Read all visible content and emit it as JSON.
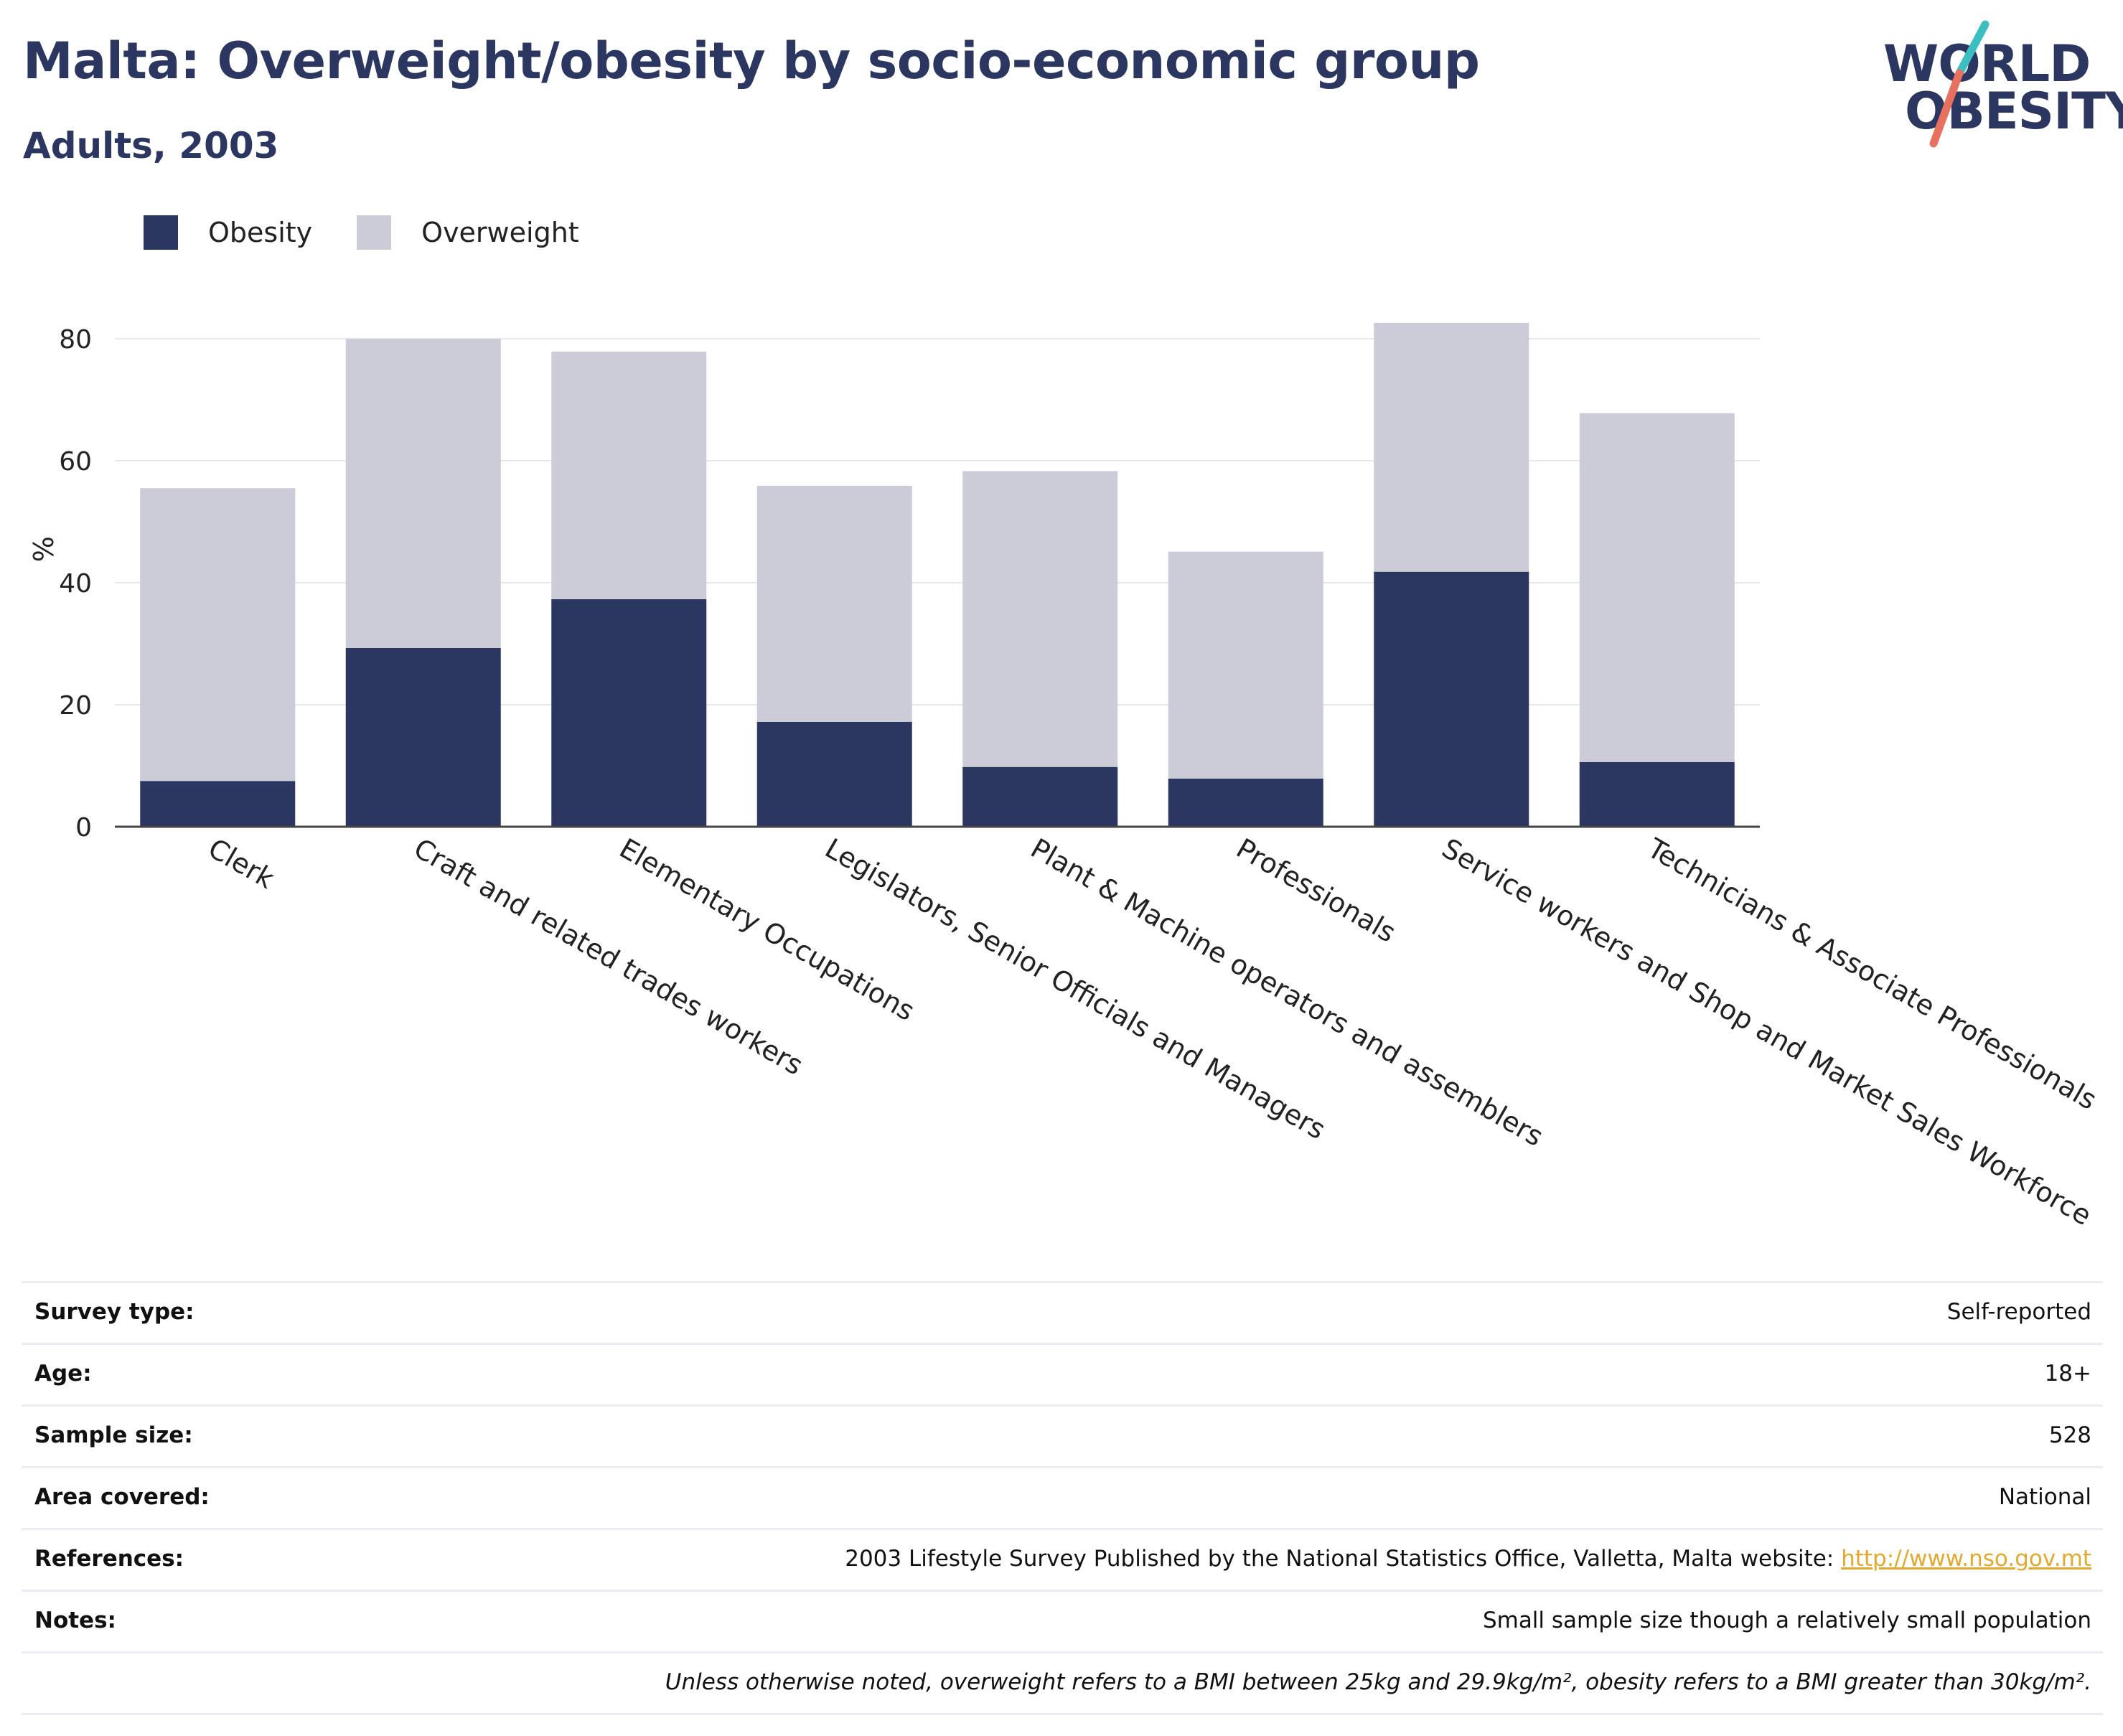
{
  "header": {
    "title": "Malta: Overweight/obesity by socio-economic group",
    "subtitle": "Adults, 2003"
  },
  "logo": {
    "line1": "WORLD",
    "line2": "OBESITY",
    "colors": {
      "teal": "#3bbfc1",
      "coral": "#e8705e"
    }
  },
  "legend": [
    {
      "label": "Obesity",
      "color": "#2b3661"
    },
    {
      "label": "Overweight",
      "color": "#cbccd8"
    }
  ],
  "chart_data": {
    "type": "bar",
    "stacked": true,
    "categories": [
      "Clerk",
      "Craft and related trades workers",
      "Elementary Occupations",
      "Legislators, Senior Officials and Managers",
      "Plant & Machine operators and assemblers",
      "Professionals",
      "Service workers and Shop and Market Sales Workforce",
      "Technicians & Associate Professionals"
    ],
    "series": [
      {
        "name": "Obesity",
        "color": "#2b3661",
        "values": [
          7.5,
          29.3,
          37.3,
          17.2,
          9.8,
          7.9,
          41.8,
          10.6
        ]
      },
      {
        "name": "Overweight",
        "color": "#cbccd8",
        "values": [
          48.0,
          50.7,
          40.6,
          38.7,
          48.5,
          37.2,
          40.8,
          57.2
        ]
      }
    ],
    "ylabel": "%",
    "ylim": [
      0,
      90
    ],
    "yticks": [
      0,
      20,
      40,
      60,
      80
    ],
    "grid": true,
    "legend_position": "top-left"
  },
  "info": {
    "rows": [
      {
        "label": "Survey type:",
        "value": "Self-reported"
      },
      {
        "label": "Age:",
        "value": "18+"
      },
      {
        "label": "Sample size:",
        "value": "528"
      },
      {
        "label": "Area covered:",
        "value": "National"
      },
      {
        "label": "References:",
        "value": "2003 Lifestyle Survey Published by the National Statistics Office, Valletta, Malta website: ",
        "link": "http://www.nso.gov.mt"
      },
      {
        "label": "Notes:",
        "value": "Small sample size though a relatively small population"
      }
    ],
    "footnote": "Unless otherwise noted, overweight refers to a BMI between 25kg and 29.9kg/m², obesity refers to a BMI greater than 30kg/m²."
  }
}
